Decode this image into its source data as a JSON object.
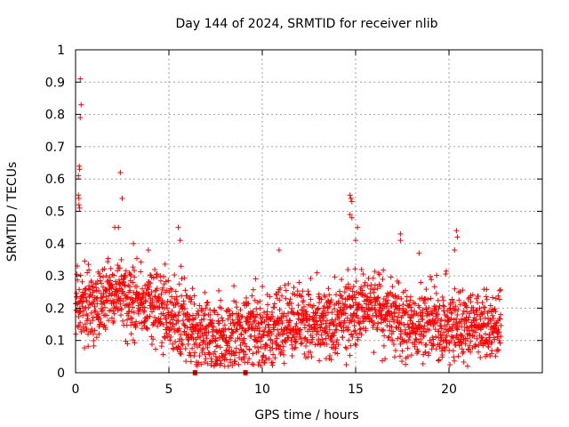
{
  "chart_data": {
    "type": "scatter",
    "title": "Day 144 of 2024, SRMTID for receiver nlib",
    "xlabel": "GPS time / hours",
    "ylabel": "SRMTID / TECUs",
    "xlim": [
      0,
      25
    ],
    "ylim": [
      0,
      1
    ],
    "x_ticks": [
      0,
      5,
      10,
      15,
      20
    ],
    "x_tick_labels": [
      "0",
      "5",
      "10",
      "15",
      "20"
    ],
    "y_ticks": [
      0,
      0.1,
      0.2,
      0.3,
      0.4,
      0.5,
      0.6,
      0.7,
      0.8,
      0.9,
      1
    ],
    "y_tick_labels": [
      "0",
      "0.1",
      "0.2",
      "0.3",
      "0.4",
      "0.5",
      "0.6",
      "0.7",
      "0.8",
      "0.9",
      "1"
    ],
    "grid": true,
    "marker": "+",
    "color": "#ff0000",
    "data_span_hours": [
      0,
      22.8
    ],
    "baseline_envelope": [
      {
        "x": 0.0,
        "y": 0.2
      },
      {
        "x": 1.0,
        "y": 0.22
      },
      {
        "x": 2.0,
        "y": 0.24
      },
      {
        "x": 3.0,
        "y": 0.22
      },
      {
        "x": 4.0,
        "y": 0.22
      },
      {
        "x": 5.0,
        "y": 0.18
      },
      {
        "x": 6.0,
        "y": 0.15
      },
      {
        "x": 7.0,
        "y": 0.11
      },
      {
        "x": 8.0,
        "y": 0.11
      },
      {
        "x": 9.0,
        "y": 0.13
      },
      {
        "x": 10.0,
        "y": 0.12
      },
      {
        "x": 11.0,
        "y": 0.15
      },
      {
        "x": 12.0,
        "y": 0.17
      },
      {
        "x": 13.0,
        "y": 0.14
      },
      {
        "x": 14.0,
        "y": 0.16
      },
      {
        "x": 15.0,
        "y": 0.19
      },
      {
        "x": 16.0,
        "y": 0.21
      },
      {
        "x": 17.0,
        "y": 0.17
      },
      {
        "x": 18.0,
        "y": 0.15
      },
      {
        "x": 19.0,
        "y": 0.16
      },
      {
        "x": 20.0,
        "y": 0.14
      },
      {
        "x": 21.0,
        "y": 0.16
      },
      {
        "x": 22.0,
        "y": 0.14
      },
      {
        "x": 22.8,
        "y": 0.15
      }
    ],
    "notable_points": [
      {
        "x": 0.25,
        "y": 0.91
      },
      {
        "x": 0.3,
        "y": 0.83
      },
      {
        "x": 0.25,
        "y": 0.79
      },
      {
        "x": 0.2,
        "y": 0.64
      },
      {
        "x": 0.22,
        "y": 0.63
      },
      {
        "x": 0.15,
        "y": 0.61
      },
      {
        "x": 0.15,
        "y": 0.55
      },
      {
        "x": 0.18,
        "y": 0.54
      },
      {
        "x": 0.18,
        "y": 0.52
      },
      {
        "x": 0.22,
        "y": 0.51
      },
      {
        "x": 2.4,
        "y": 0.62
      },
      {
        "x": 2.5,
        "y": 0.54
      },
      {
        "x": 2.1,
        "y": 0.45
      },
      {
        "x": 2.3,
        "y": 0.45
      },
      {
        "x": 5.5,
        "y": 0.45
      },
      {
        "x": 5.6,
        "y": 0.41
      },
      {
        "x": 10.9,
        "y": 0.38
      },
      {
        "x": 14.7,
        "y": 0.55
      },
      {
        "x": 14.75,
        "y": 0.54
      },
      {
        "x": 14.8,
        "y": 0.53
      },
      {
        "x": 14.7,
        "y": 0.49
      },
      {
        "x": 14.8,
        "y": 0.48
      },
      {
        "x": 15.1,
        "y": 0.45
      },
      {
        "x": 15.0,
        "y": 0.41
      },
      {
        "x": 17.4,
        "y": 0.43
      },
      {
        "x": 17.4,
        "y": 0.41
      },
      {
        "x": 18.4,
        "y": 0.37
      },
      {
        "x": 20.4,
        "y": 0.44
      },
      {
        "x": 20.45,
        "y": 0.42
      },
      {
        "x": 20.3,
        "y": 0.38
      },
      {
        "x": 3.1,
        "y": 0.4
      },
      {
        "x": 3.9,
        "y": 0.38
      }
    ],
    "gap_markers_x": [
      6.4,
      9.1
    ]
  }
}
